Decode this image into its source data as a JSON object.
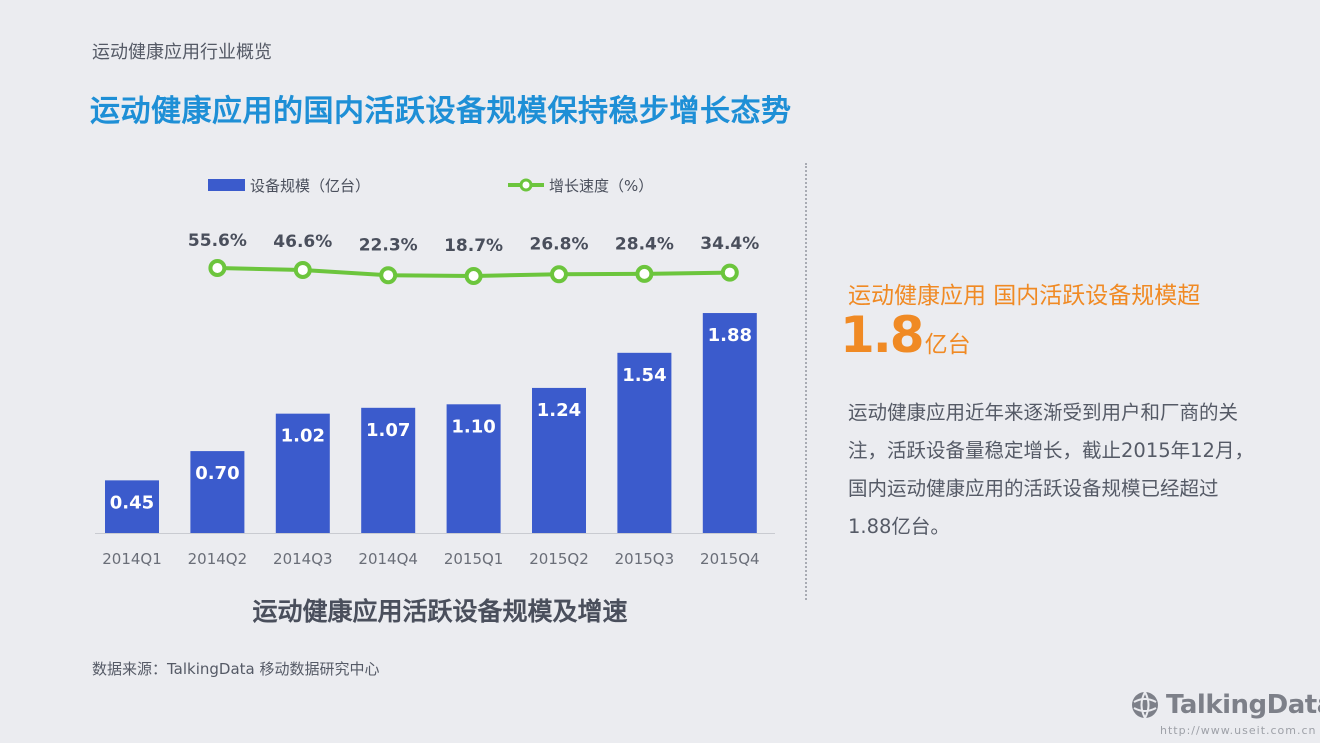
{
  "header": {
    "section": "运动健康应用行业概览",
    "headline": "运动健康应用的国内活跃设备规模保持稳步增长态势"
  },
  "colors": {
    "bar": "#3b5bcc",
    "line": "#6cc53d",
    "headline": "#1e8fd6",
    "accent": "#f08a24",
    "text": "#555a66"
  },
  "chart_data": {
    "type": "bar",
    "caption": "运动健康应用活跃设备规模及增速",
    "categories": [
      "2014Q1",
      "2014Q2",
      "2014Q3",
      "2014Q4",
      "2015Q1",
      "2015Q2",
      "2015Q3",
      "2015Q4"
    ],
    "series": [
      {
        "name": "设备规模（亿台）",
        "type": "bar",
        "values": [
          0.45,
          0.7,
          1.02,
          1.07,
          1.1,
          1.24,
          1.54,
          1.88
        ],
        "labels": [
          "0.45",
          "0.70",
          "1.02",
          "1.07",
          "1.10",
          "1.24",
          "1.54",
          "1.88"
        ]
      },
      {
        "name": "增长速度（%）",
        "type": "line",
        "values": [
          null,
          55.6,
          46.6,
          22.3,
          18.7,
          26.8,
          28.4,
          34.4
        ],
        "labels": [
          "",
          "55.6%",
          "46.6%",
          "22.3%",
          "18.7%",
          "26.8%",
          "28.4%",
          "34.4%"
        ]
      }
    ],
    "legend": "top",
    "grid": false
  },
  "kpi": {
    "title": "运动健康应用 国内活跃设备规模超",
    "number": "1.8",
    "unit": "亿台",
    "description": "运动健康应用近年来逐渐受到用户和厂商的关注，活跃设备量稳定增长，截止2015年12月，国内运动健康应用的活跃设备规模已经超过1.88亿台。"
  },
  "source": "数据来源：TalkingData 移动数据研究中心",
  "logo": {
    "text": "TalkingData",
    "icon": "globe-logo-icon"
  },
  "watermark": "http://www.useit.com.cn"
}
